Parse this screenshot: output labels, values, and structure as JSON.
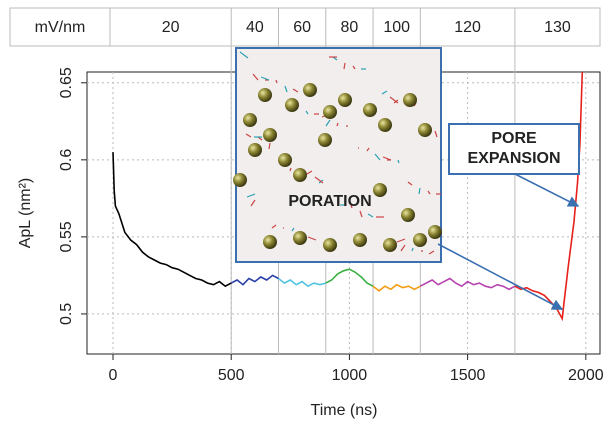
{
  "chart_data": {
    "type": "line",
    "band_label": "mV/nm",
    "x_label": "Time (ns)",
    "y_label": "ApL (nm²)",
    "xlim": [
      -110,
      2060
    ],
    "xticks": [
      0,
      500,
      1000,
      1500,
      2000
    ],
    "ylim": [
      0.474,
      0.657
    ],
    "yticks": [
      0.5,
      0.55,
      0.6,
      0.65
    ],
    "grid": true,
    "series": [
      {
        "name": "20",
        "color": "#000000",
        "x": [
          0,
          5,
          10,
          25,
          50,
          75,
          100,
          125,
          150,
          175,
          200,
          225,
          250,
          275,
          300,
          325,
          350,
          375,
          400,
          425,
          450,
          475,
          500
        ],
        "values": [
          0.605,
          0.58,
          0.57,
          0.565,
          0.553,
          0.548,
          0.545,
          0.54,
          0.537,
          0.535,
          0.533,
          0.532,
          0.53,
          0.529,
          0.527,
          0.525,
          0.523,
          0.522,
          0.52,
          0.519,
          0.521,
          0.518,
          0.52
        ]
      },
      {
        "name": "40",
        "color": "#2b3fa8",
        "x": [
          500,
          525,
          550,
          575,
          600,
          625,
          650,
          675,
          700
        ],
        "values": [
          0.52,
          0.522,
          0.519,
          0.523,
          0.521,
          0.524,
          0.522,
          0.525,
          0.523
        ]
      },
      {
        "name": "60",
        "color": "#4fc3e0",
        "x": [
          700,
          725,
          750,
          775,
          800,
          825,
          850,
          875,
          900
        ],
        "values": [
          0.523,
          0.52,
          0.522,
          0.519,
          0.521,
          0.518,
          0.52,
          0.519,
          0.52
        ]
      },
      {
        "name": "80",
        "color": "#3cb043",
        "x": [
          900,
          925,
          950,
          975,
          1000,
          1025,
          1050,
          1075,
          1100
        ],
        "values": [
          0.52,
          0.522,
          0.526,
          0.528,
          0.529,
          0.527,
          0.524,
          0.52,
          0.518
        ]
      },
      {
        "name": "100",
        "color": "#f39c12",
        "x": [
          1100,
          1125,
          1150,
          1175,
          1200,
          1225,
          1250,
          1275,
          1300
        ],
        "values": [
          0.518,
          0.515,
          0.518,
          0.516,
          0.519,
          0.517,
          0.518,
          0.516,
          0.518
        ]
      },
      {
        "name": "120",
        "color": "#b543b0",
        "x": [
          1300,
          1325,
          1350,
          1375,
          1400,
          1425,
          1450,
          1475,
          1500,
          1525,
          1550,
          1575,
          1600,
          1625,
          1650,
          1675,
          1700
        ],
        "values": [
          0.518,
          0.52,
          0.522,
          0.519,
          0.521,
          0.523,
          0.52,
          0.518,
          0.521,
          0.519,
          0.52,
          0.518,
          0.517,
          0.519,
          0.518,
          0.516,
          0.518
        ]
      },
      {
        "name": "130",
        "color": "#e8201a",
        "x": [
          1700,
          1725,
          1750,
          1775,
          1800,
          1825,
          1850,
          1875,
          1900,
          1910,
          1925,
          1950,
          1965,
          1975,
          1985
        ],
        "values": [
          0.518,
          0.516,
          0.517,
          0.515,
          0.514,
          0.512,
          0.508,
          0.504,
          0.497,
          0.51,
          0.53,
          0.56,
          0.585,
          0.61,
          0.657
        ]
      }
    ],
    "annotations": [
      {
        "text": "PORATION",
        "x": 1900,
        "y": 0.503
      },
      {
        "text": "PORE EXPANSION",
        "x": 1968,
        "y": 0.57
      }
    ]
  }
}
